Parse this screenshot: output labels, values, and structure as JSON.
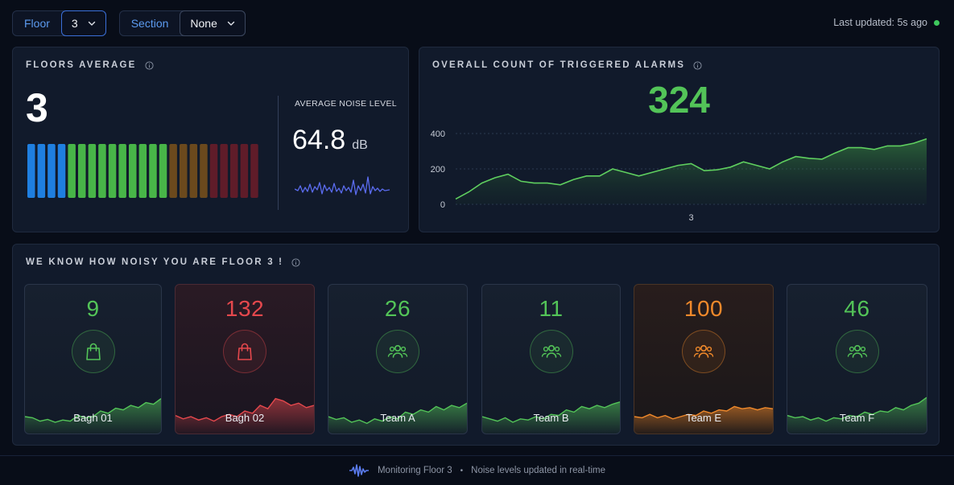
{
  "filters": {
    "floor": {
      "label": "Floor",
      "value": "3"
    },
    "section": {
      "label": "Section",
      "value": "None"
    }
  },
  "status": {
    "last_updated": "Last updated: 5s ago",
    "live_color": "#3ec95d"
  },
  "floors_panel": {
    "title": "FLOORS AVERAGE",
    "floor_value": "3",
    "noise_label": "AVERAGE NOISE LEVEL",
    "noise_value": "64.8",
    "noise_unit": "dB",
    "meter_level": 0.6
  },
  "alarms_panel": {
    "title": "OVERALL COUNT OF TRIGGERED ALARMS",
    "count": "324",
    "chart_data": {
      "type": "area",
      "xlabel": "3",
      "ylim": [
        0,
        400
      ],
      "y_ticks": [
        "400",
        "200",
        "0"
      ],
      "grid": true,
      "series": [
        {
          "values": [
            30,
            70,
            120,
            150,
            170,
            130,
            120,
            120,
            110,
            140,
            160,
            160,
            200,
            180,
            160,
            180,
            200,
            220,
            230,
            190,
            195,
            210,
            240,
            220,
            200,
            240,
            270,
            260,
            255,
            290,
            320,
            320,
            310,
            330,
            330,
            345,
            370
          ]
        }
      ]
    }
  },
  "teams_panel": {
    "title": "WE KNOW HOW NOISY YOU ARE FLOOR 3 !",
    "teams": [
      {
        "name": "Bagh 01",
        "count": "9",
        "icon": "shopping-bag-icon",
        "color": "#53c458",
        "spark": [
          0.3,
          0.28,
          0.22,
          0.25,
          0.2,
          0.24,
          0.22,
          0.32,
          0.28,
          0.3,
          0.4,
          0.36,
          0.45,
          0.42,
          0.5,
          0.46,
          0.55,
          0.52,
          0.62
        ]
      },
      {
        "name": "Bagh 02",
        "count": "132",
        "icon": "shopping-bag-icon",
        "color": "#e5484d",
        "spark": [
          0.32,
          0.26,
          0.3,
          0.24,
          0.28,
          0.22,
          0.3,
          0.34,
          0.3,
          0.4,
          0.36,
          0.5,
          0.44,
          0.62,
          0.58,
          0.5,
          0.54,
          0.46,
          0.5
        ]
      },
      {
        "name": "Team A",
        "count": "26",
        "icon": "team-icon",
        "color": "#53c458",
        "spark": [
          0.3,
          0.25,
          0.28,
          0.2,
          0.24,
          0.18,
          0.26,
          0.22,
          0.3,
          0.26,
          0.38,
          0.34,
          0.42,
          0.38,
          0.48,
          0.42,
          0.5,
          0.46,
          0.54
        ]
      },
      {
        "name": "Team B",
        "count": "11",
        "icon": "team-icon",
        "color": "#53c458",
        "spark": [
          0.3,
          0.26,
          0.22,
          0.28,
          0.2,
          0.26,
          0.24,
          0.3,
          0.26,
          0.34,
          0.32,
          0.42,
          0.38,
          0.48,
          0.44,
          0.5,
          0.46,
          0.52,
          0.56
        ]
      },
      {
        "name": "Team E",
        "count": "100",
        "icon": "team-icon",
        "color": "#f0892b",
        "spark": [
          0.3,
          0.28,
          0.34,
          0.28,
          0.32,
          0.26,
          0.3,
          0.34,
          0.32,
          0.4,
          0.36,
          0.42,
          0.4,
          0.48,
          0.44,
          0.46,
          0.42,
          0.46,
          0.44
        ]
      },
      {
        "name": "Team F",
        "count": "46",
        "icon": "team-icon",
        "color": "#53c458",
        "spark": [
          0.32,
          0.28,
          0.3,
          0.24,
          0.28,
          0.22,
          0.28,
          0.26,
          0.32,
          0.3,
          0.38,
          0.34,
          0.4,
          0.38,
          0.46,
          0.42,
          0.5,
          0.54,
          0.64
        ]
      }
    ]
  },
  "footer": {
    "monitoring": "Monitoring Floor 3",
    "separator": "•",
    "realtime": "Noise levels updated in real-time"
  }
}
